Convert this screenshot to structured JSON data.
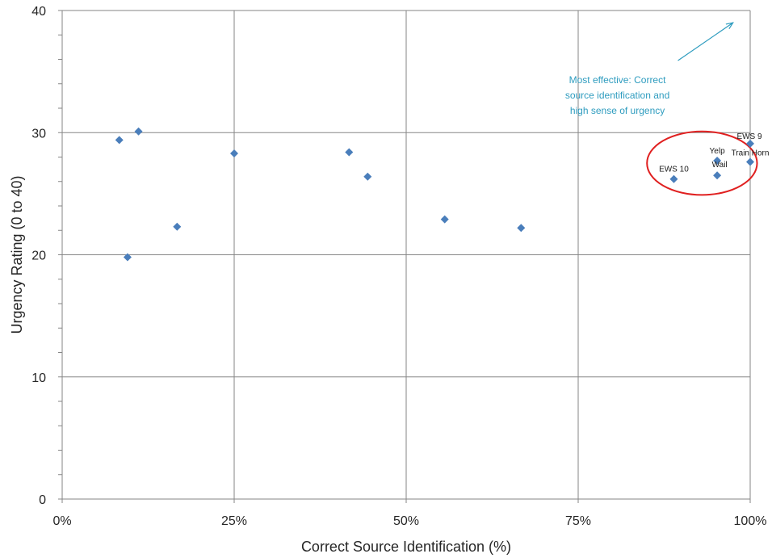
{
  "chart_data": {
    "type": "scatter",
    "xlabel": "Correct Source Identification (%)",
    "ylabel": "Urgency Rating (0 to 40)",
    "xlim": [
      0,
      100
    ],
    "ylim": [
      0,
      40
    ],
    "x_ticks": [
      0,
      25,
      50,
      75,
      100
    ],
    "x_tick_labels": [
      "0%",
      "25%",
      "50%",
      "75%",
      "100%"
    ],
    "y_ticks": [
      0,
      10,
      20,
      30,
      40
    ],
    "y_tick_labels": [
      "0",
      "10",
      "20",
      "30",
      "40"
    ],
    "y_minor_step": 2,
    "grid": true,
    "series": [
      {
        "color": "#4a7ebb",
        "marker": "diamond",
        "points": [
          {
            "x": 8.3,
            "y": 29.4,
            "label": ""
          },
          {
            "x": 11.1,
            "y": 30.1,
            "label": ""
          },
          {
            "x": 9.5,
            "y": 19.8,
            "label": ""
          },
          {
            "x": 16.7,
            "y": 22.3,
            "label": ""
          },
          {
            "x": 25.0,
            "y": 28.3,
            "label": ""
          },
          {
            "x": 41.7,
            "y": 28.4,
            "label": ""
          },
          {
            "x": 44.4,
            "y": 26.4,
            "label": ""
          },
          {
            "x": 55.6,
            "y": 22.9,
            "label": ""
          },
          {
            "x": 66.7,
            "y": 22.2,
            "label": ""
          },
          {
            "x": 88.9,
            "y": 26.2,
            "label": "EWS 10"
          },
          {
            "x": 95.2,
            "y": 27.7,
            "label": "Yelp"
          },
          {
            "x": 95.2,
            "y": 26.5,
            "label": "Wail"
          },
          {
            "x": 100.0,
            "y": 29.1,
            "label": "EWS 9"
          },
          {
            "x": 100.0,
            "y": 27.6,
            "label": "Train Horn"
          }
        ]
      }
    ],
    "annotation": {
      "text_lines": [
        "Most effective:  Correct",
        "source identification and",
        "high sense of urgency"
      ],
      "color": "#2e9cbf",
      "arrow_from": {
        "x": 89.5,
        "y": 35.9
      },
      "arrow_to": {
        "x": 97.5,
        "y": 39.0
      }
    },
    "highlight_ellipse": {
      "color": "#e02020",
      "cx": 93.0,
      "cy": 27.5,
      "rx": 8.0,
      "ry": 2.6
    }
  }
}
